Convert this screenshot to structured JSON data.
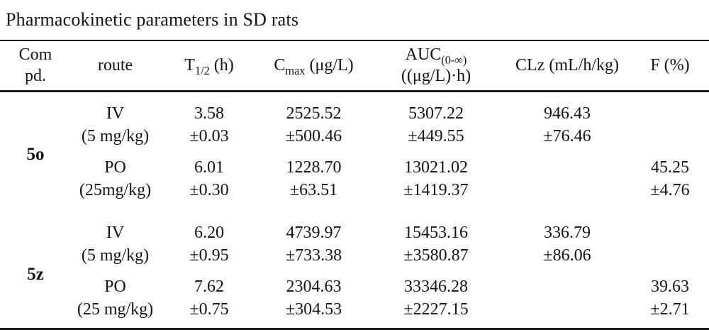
{
  "title": "Pharmacokinetic parameters in SD rats",
  "table": {
    "headers": {
      "compound_line1": "Com",
      "compound_line2": "pd.",
      "route": "route",
      "t_half_base": "T",
      "t_half_sub": "1/2",
      "t_half_unit": " (h)",
      "cmax_base": "C",
      "cmax_sub": "max",
      "cmax_unit": " (μg/L)",
      "auc_base": "AUC",
      "auc_sub": "(0-∞)",
      "auc_unit": "((μg/L)·h)",
      "clz": "CLz (mL/h/kg)",
      "f": "F (%)"
    },
    "groups": [
      {
        "compound": "5o",
        "iv": {
          "route": "IV",
          "dose": "(5 mg/kg)",
          "t_half": "3.58",
          "t_half_sd": "±0.03",
          "cmax": "2525.52",
          "cmax_sd": "±500.46",
          "auc": "5307.22",
          "auc_sd": "±449.55",
          "clz": "946.43",
          "clz_sd": "±76.46",
          "f": "",
          "f_sd": ""
        },
        "po": {
          "route": "PO",
          "dose": "(25mg/kg)",
          "t_half": "6.01",
          "t_half_sd": "±0.30",
          "cmax": "1228.70",
          "cmax_sd": "±63.51",
          "auc": "13021.02",
          "auc_sd": "±1419.37",
          "clz": "",
          "clz_sd": "",
          "f": "45.25",
          "f_sd": "±4.76"
        }
      },
      {
        "compound": "5z",
        "iv": {
          "route": "IV",
          "dose": "(5 mg/kg)",
          "t_half": "6.20",
          "t_half_sd": "±0.95",
          "cmax": "4739.97",
          "cmax_sd": "±733.38",
          "auc": "15453.16",
          "auc_sd": "±3580.87",
          "clz": "336.79",
          "clz_sd": "±86.06",
          "f": "",
          "f_sd": ""
        },
        "po": {
          "route": "PO",
          "dose": "(25 mg/kg)",
          "t_half": "7.62",
          "t_half_sd": "±0.75",
          "cmax": "2304.63",
          "cmax_sd": "±304.53",
          "auc": "33346.28",
          "auc_sd": "±2227.15",
          "clz": "",
          "clz_sd": "",
          "f": "39.63",
          "f_sd": "±2.71"
        }
      }
    ]
  }
}
